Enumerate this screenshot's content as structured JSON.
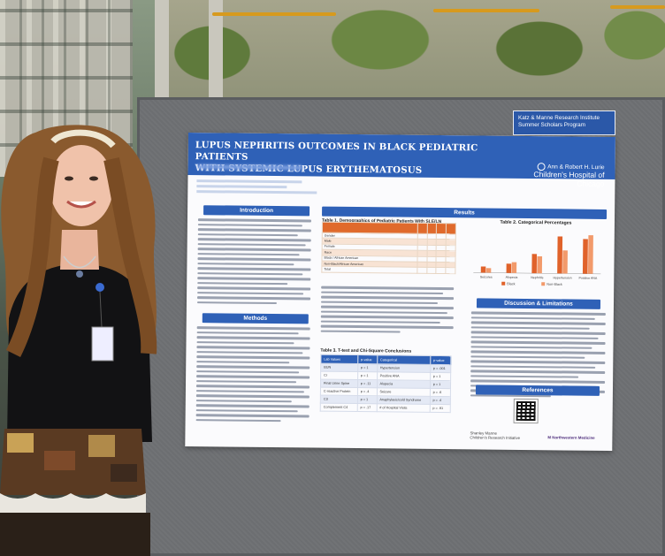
{
  "sponsor": {
    "line1": "Katz & Manne Research Institute",
    "line2": "Summer Scholars Program"
  },
  "poster": {
    "title_line1": "LUPUS NEPHRITIS OUTCOMES IN BLACK PEDIATRIC PATIENTS",
    "title_line2": "WITH SYSTEMIC LUPUS ERYTHEMATOSUS",
    "logo_line1": "Ann & Robert H. Lurie",
    "logo_line2": "Children's Hospital of Chicago",
    "sections": {
      "introduction": "Introduction",
      "methods": "Methods",
      "results": "Results",
      "discussion": "Discussion & Limitations",
      "references": "References"
    },
    "table1_title": "Table 1. Demographics of Pediatric Patients With SLE/LN",
    "table1_rows": [
      "Gender",
      "Male",
      "Female",
      "Race",
      "Black / African American",
      "Non-Black/African American",
      "Total"
    ],
    "chart_title": "Table 2. Categorical Percentages",
    "table2_title": "Table 3. T-test and Chi-Square Conclusions",
    "table2_headers": [
      "Lab Values",
      "p-value",
      "Categorical",
      "p-value"
    ],
    "table2_rows": [
      [
        "BUN",
        "p = 1",
        "Hypertension",
        "p = .001"
      ],
      [
        "Cr",
        "p = 1",
        "Positive ANA",
        "p = 1"
      ],
      [
        "Final Urine Spine",
        "p = .11",
        "Alopecia",
        "p = 1"
      ],
      [
        "C-reactive Protein",
        "p = .4",
        "Seizure",
        "p = .6"
      ],
      [
        "C3",
        "p = 1",
        "Anaphylaxis/cold Syndrome",
        "p = .4"
      ],
      [
        "Complement C4",
        "p = .17",
        "# of Hospital Visits",
        "p = .91"
      ]
    ],
    "footer_left_1": "Shanley Manne",
    "footer_left_2": "Children's Research Initiative",
    "footer_right": "M Northwestern Medicine"
  },
  "chart_data": {
    "type": "bar",
    "title": "Table 2. Categorical Percentages",
    "categories": [
      "Seizures",
      "Alopecia",
      "Nephritis",
      "Hypertension",
      "Positive ANA"
    ],
    "series": [
      {
        "name": "Black",
        "values": [
          8,
          12,
          25,
          48,
          45
        ]
      },
      {
        "name": "Non-Black",
        "values": [
          6,
          14,
          22,
          30,
          50
        ]
      }
    ],
    "colors": [
      "#e0622a",
      "#f29a6b"
    ]
  }
}
